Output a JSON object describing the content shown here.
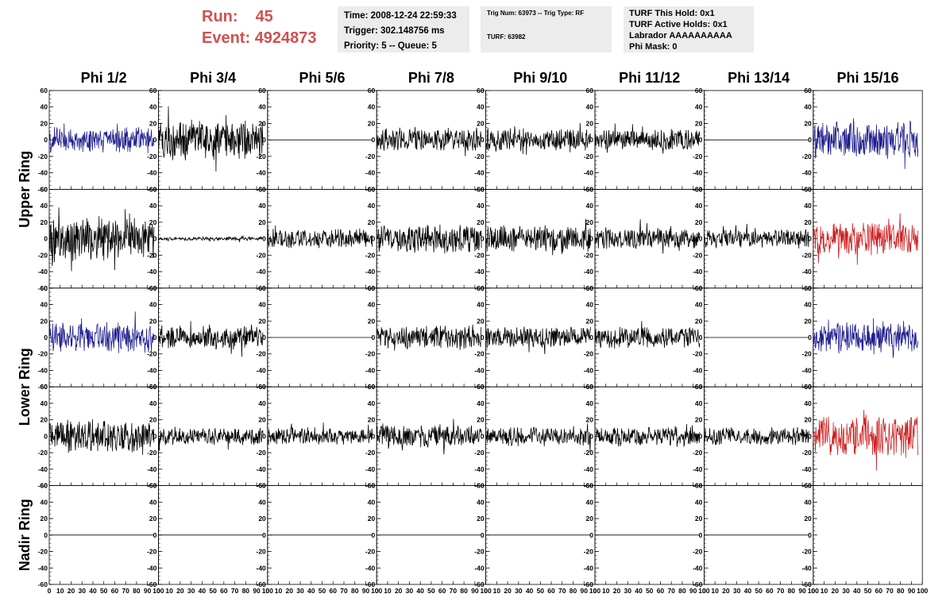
{
  "header": {
    "run_label": "Run:",
    "run_value": "45",
    "event_label": "Event:",
    "event_value": "4924873",
    "time_line": "Time: 2008-12-24 22:59:33",
    "trigger_line": "Trigger: 302.148756 ms",
    "priority_line": "Priority: 5 -- Queue: 5",
    "trig_num_line": "Trig Num: 63973 -- Trig Type: RF",
    "turf_line": "TURF: 63982",
    "turf_hold_line": "TURF This Hold: 0x1",
    "turf_active_line": "TURF Active Holds: 0x1",
    "labrador_line": "Labrador AAAAAAAAAA",
    "phi_mask_line": "Phi Mask: 0"
  },
  "chart_data": {
    "type": "line",
    "columns": [
      "Phi 1/2",
      "Phi 3/4",
      "Phi 5/6",
      "Phi 7/8",
      "Phi 9/10",
      "Phi 11/12",
      "Phi 13/14",
      "Phi 15/16"
    ],
    "rows": [
      "Upper Ring",
      "Upper Ring",
      "Lower Ring",
      "Lower Ring",
      "Nadir Ring"
    ],
    "row_labels": [
      {
        "text": "Upper Ring",
        "spans": [
          0,
          1
        ]
      },
      {
        "text": "Lower Ring",
        "spans": [
          2,
          3
        ]
      },
      {
        "text": "Nadir Ring",
        "spans": [
          4,
          4
        ]
      }
    ],
    "xlim": [
      0,
      100
    ],
    "ylim": [
      -60,
      60
    ],
    "x_ticks": [
      0,
      10,
      20,
      30,
      40,
      50,
      60,
      70,
      80,
      90,
      100
    ],
    "y_ticks": [
      -60,
      -40,
      -20,
      0,
      20,
      40,
      60
    ],
    "trace_x_range": [
      0,
      96
    ],
    "colors": {
      "black": "#000000",
      "blue": "#1f1f8f",
      "red": "#cc2020"
    },
    "panels": [
      [
        {
          "color": "blue",
          "amp": 13
        },
        {
          "color": "black",
          "amp": 20
        },
        {
          "color": "black",
          "amp": 5,
          "flat": true
        },
        {
          "color": "black",
          "amp": 12
        },
        {
          "color": "black",
          "amp": 12
        },
        {
          "color": "black",
          "amp": 11
        },
        {
          "color": "black",
          "amp": 0,
          "flat": true
        },
        {
          "color": "blue",
          "amp": 18
        }
      ],
      [
        {
          "color": "black",
          "amp": 22
        },
        {
          "color": "black",
          "amp": 2
        },
        {
          "color": "black",
          "amp": 10
        },
        {
          "color": "black",
          "amp": 14
        },
        {
          "color": "black",
          "amp": 13
        },
        {
          "color": "black",
          "amp": 11
        },
        {
          "color": "black",
          "amp": 9
        },
        {
          "color": "red",
          "amp": 17
        }
      ],
      [
        {
          "color": "blue",
          "amp": 15
        },
        {
          "color": "black",
          "amp": 12
        },
        {
          "color": "black",
          "amp": 0,
          "flat": true
        },
        {
          "color": "black",
          "amp": 12
        },
        {
          "color": "black",
          "amp": 11
        },
        {
          "color": "black",
          "amp": 11
        },
        {
          "color": "black",
          "amp": 0,
          "flat": true
        },
        {
          "color": "blue",
          "amp": 16
        }
      ],
      [
        {
          "color": "black",
          "amp": 17
        },
        {
          "color": "black",
          "amp": 9
        },
        {
          "color": "black",
          "amp": 9
        },
        {
          "color": "black",
          "amp": 12
        },
        {
          "color": "black",
          "amp": 10
        },
        {
          "color": "black",
          "amp": 10
        },
        {
          "color": "black",
          "amp": 9
        },
        {
          "color": "red",
          "amp": 21
        }
      ],
      [
        {
          "color": "black",
          "amp": 0,
          "flat": true
        },
        {
          "color": "black",
          "amp": 0,
          "flat": true
        },
        {
          "color": "black",
          "amp": 0,
          "flat": true
        },
        {
          "color": "black",
          "amp": 0,
          "flat": true
        },
        {
          "color": "black",
          "amp": 0,
          "flat": true
        },
        {
          "color": "black",
          "amp": 0,
          "flat": true
        },
        {
          "color": "black",
          "amp": 0,
          "flat": true
        },
        {
          "color": "black",
          "amp": 0,
          "flat": true,
          "no_trace": true
        }
      ]
    ]
  }
}
